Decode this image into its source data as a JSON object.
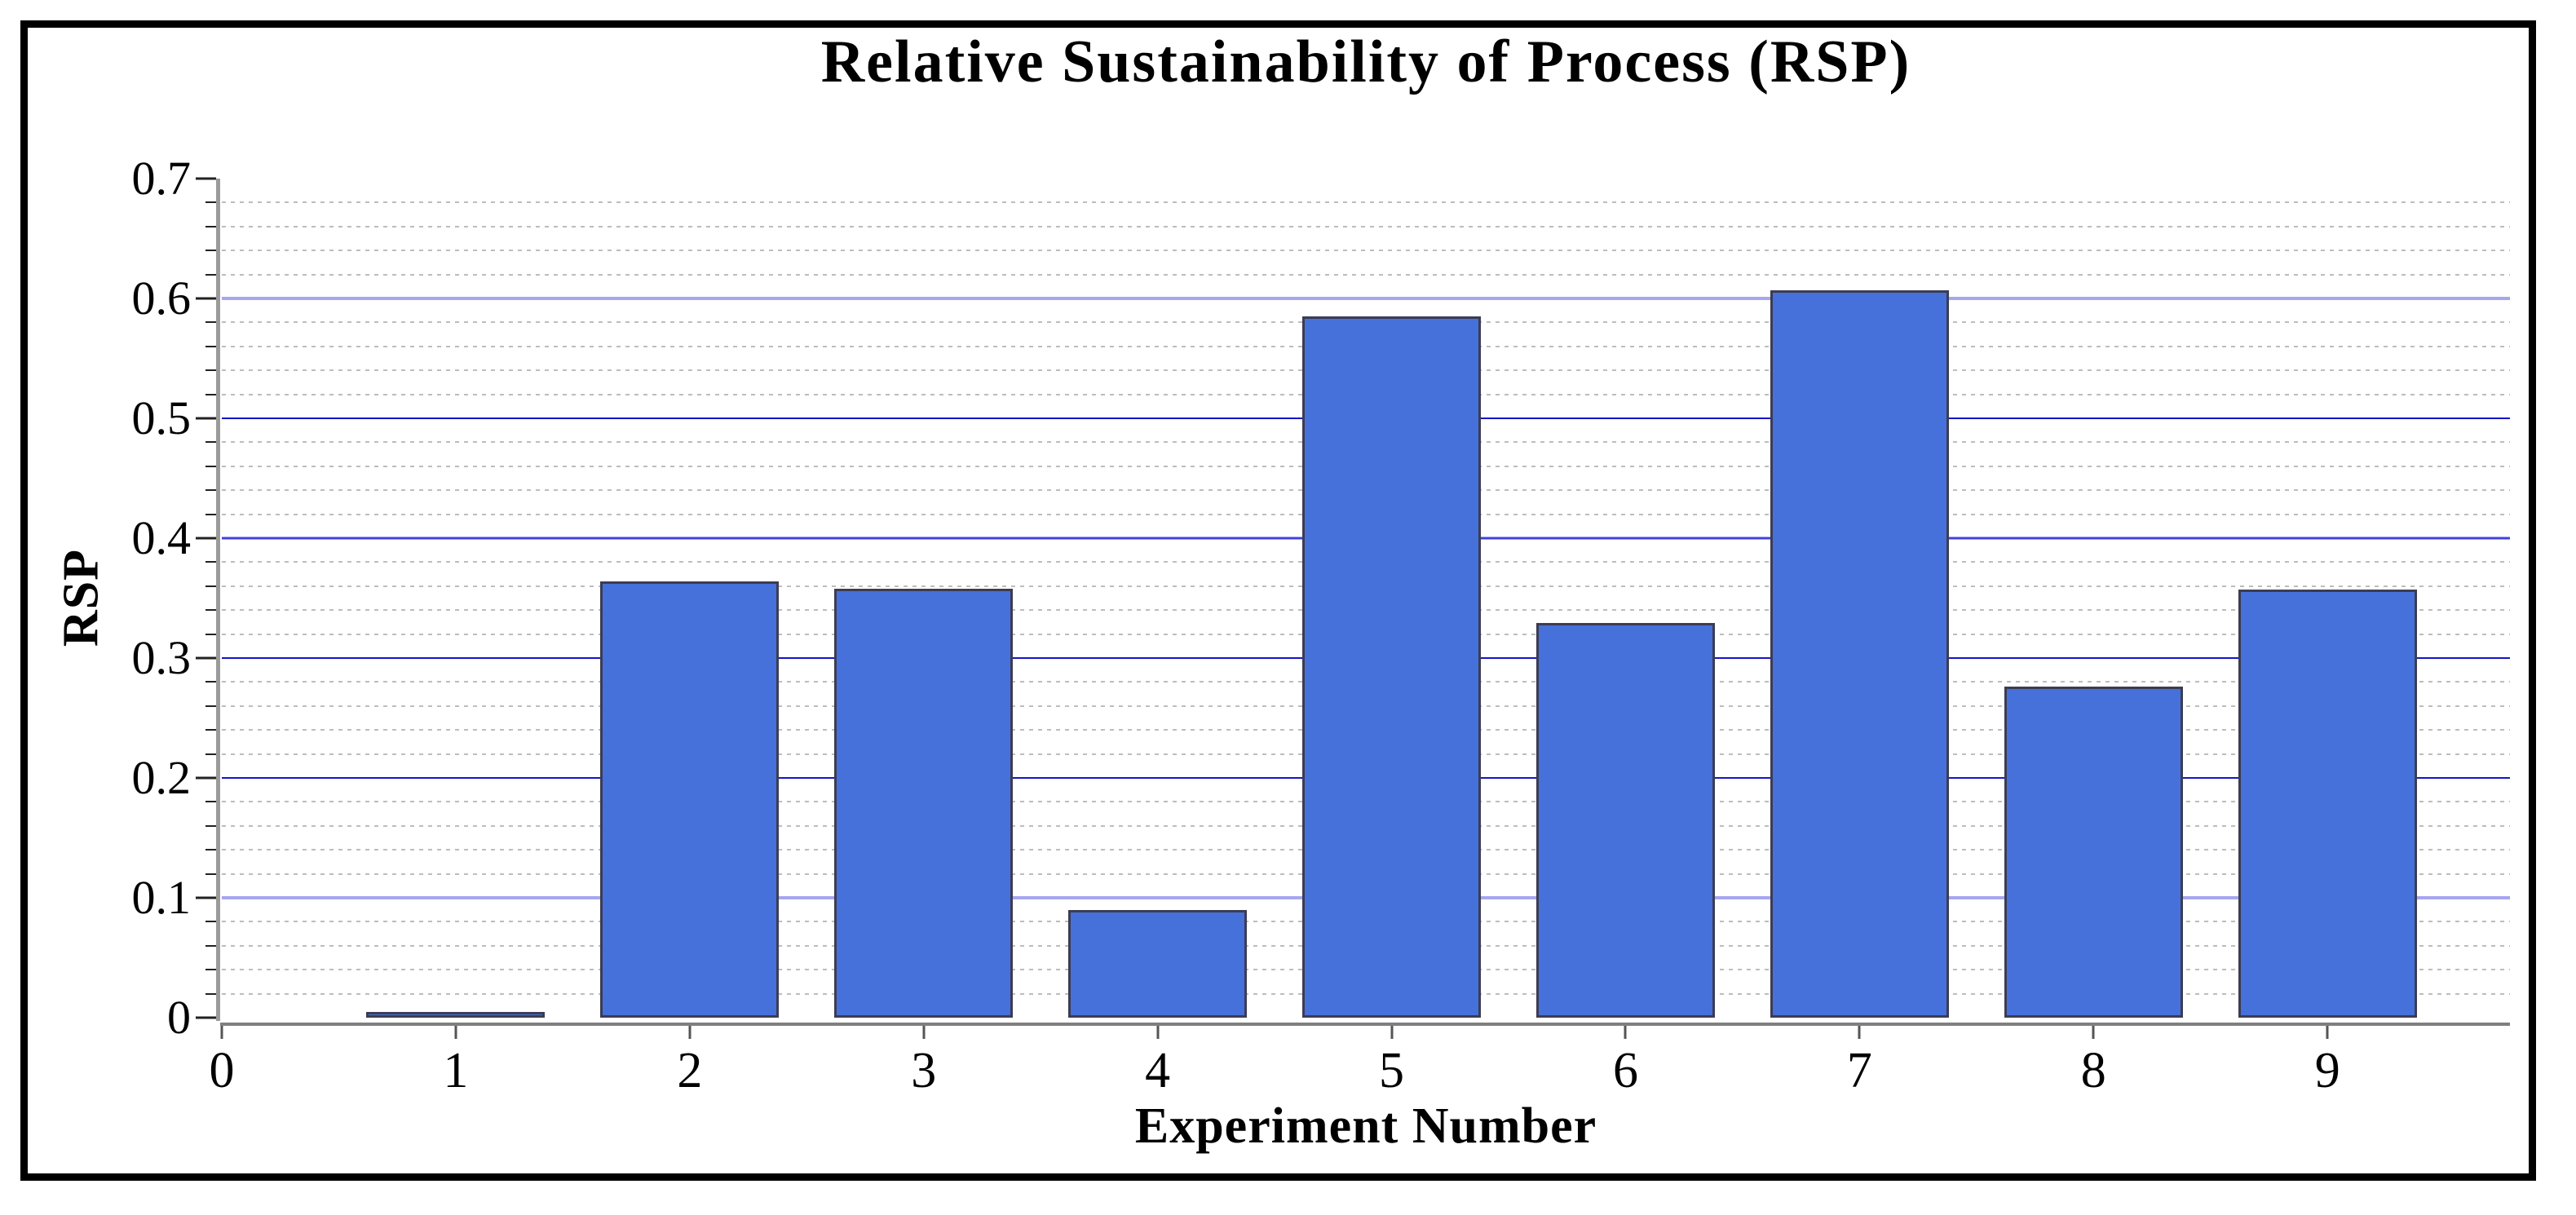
{
  "chart_data": {
    "type": "bar",
    "title": "Relative Sustainability of Process (RSP)",
    "xlabel": "Experiment Number",
    "ylabel": "RSP",
    "categories": [
      1,
      2,
      3,
      4,
      5,
      6,
      7,
      8,
      9
    ],
    "values": [
      0.005,
      0.364,
      0.358,
      0.09,
      0.585,
      0.329,
      0.607,
      0.276,
      0.357
    ],
    "xlim": [
      0,
      9.78
    ],
    "ylim": [
      0,
      0.7
    ],
    "x_ticks": [
      0,
      1,
      2,
      3,
      4,
      5,
      6,
      7,
      8,
      9
    ],
    "x_tick_labels": [
      "0",
      "1",
      "2",
      "3",
      "4",
      "5",
      "6",
      "7",
      "8",
      "9"
    ],
    "y_ticks": [
      0,
      0.1,
      0.2,
      0.3,
      0.4,
      0.5,
      0.6,
      0.7
    ],
    "y_tick_labels": [
      "0",
      "0.1",
      "0.2",
      "0.3",
      "0.4",
      "0.5",
      "0.6",
      "0.7"
    ],
    "y_minor_step": 0.02,
    "bar_width": 0.763,
    "grid": "horizontal major solid blue + minor dotted gray",
    "legend": null
  },
  "style": {
    "colors": {
      "bar-fill": "#4671DB",
      "bar-edge": "#3C3C52",
      "grid-major-dark": "#1414C8",
      "grid-major-medium": "#4040DF",
      "grid-major-light": "#A6A6F0",
      "grid-minor": "#BDBDBD",
      "axis": "#9B9B9B",
      "axis-dark": "#7F7F7F",
      "tick": "#222222",
      "tick-x": "#555555",
      "frame": "#000000",
      "text": "#000000"
    },
    "grid_light_levels": [
      0.1,
      0.6
    ],
    "grid_medium_levels": [
      0.4
    ]
  }
}
